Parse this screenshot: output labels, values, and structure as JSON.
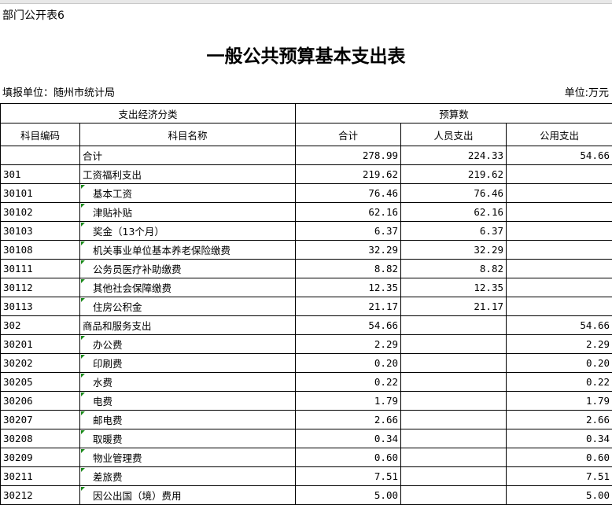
{
  "header": {
    "table_no": "部门公开表6",
    "title": "一般公共预算基本支出表",
    "reporting_unit": "填报单位：随州市统计局",
    "unit": "单位:万元"
  },
  "table": {
    "group_headers": [
      "支出经济分类",
      "预算数"
    ],
    "columns": [
      "科目编码",
      "科目名称",
      "合计",
      "人员支出",
      "公用支出"
    ],
    "rows": [
      [
        null,
        "合计",
        "278.99",
        "224.33",
        "54.66"
      ],
      [
        "301",
        "工资福利支出",
        "219.62",
        "219.62",
        null
      ],
      [
        "30101",
        "基本工资",
        "76.46",
        "76.46",
        null
      ],
      [
        "30102",
        "津贴补贴",
        "62.16",
        "62.16",
        null
      ],
      [
        "30103",
        "奖金（13个月）",
        "6.37",
        "6.37",
        null
      ],
      [
        "30108",
        "机关事业单位基本养老保险缴费",
        "32.29",
        "32.29",
        null
      ],
      [
        "30111",
        "公务员医疗补助缴费",
        "8.82",
        "8.82",
        null
      ],
      [
        "30112",
        "其他社会保障缴费",
        "12.35",
        "12.35",
        null
      ],
      [
        "30113",
        "住房公积金",
        "21.17",
        "21.17",
        null
      ],
      [
        "302",
        "商品和服务支出",
        "54.66",
        null,
        "54.66"
      ],
      [
        "30201",
        "办公费",
        "2.29",
        null,
        "2.29"
      ],
      [
        "30202",
        "印刷费",
        "0.20",
        null,
        "0.20"
      ],
      [
        "30205",
        "水费",
        "0.22",
        null,
        "0.22"
      ],
      [
        "30206",
        "电费",
        "1.79",
        null,
        "1.79"
      ],
      [
        "30207",
        "邮电费",
        "2.66",
        null,
        "2.66"
      ],
      [
        "30208",
        "取暖费",
        "0.34",
        null,
        "0.34"
      ],
      [
        "30209",
        "物业管理费",
        "0.60",
        null,
        "0.60"
      ],
      [
        "30211",
        "差旅费",
        "7.51",
        null,
        "7.51"
      ],
      [
        "30212",
        "因公出国（境）费用",
        "5.00",
        null,
        "5.00"
      ]
    ]
  }
}
